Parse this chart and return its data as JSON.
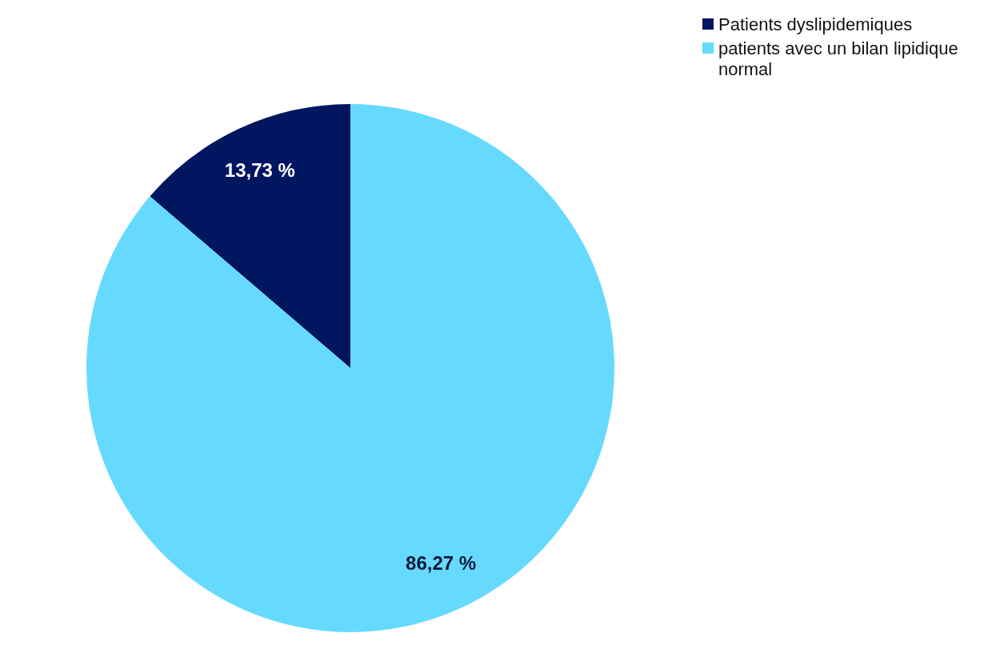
{
  "chart_data": {
    "type": "pie",
    "categories": [
      "Patients dyslipidemiques",
      "patients avec un bilan lipidique normal"
    ],
    "values": [
      13.73,
      86.27
    ],
    "colors": [
      "#001660",
      "#66d9ff"
    ],
    "value_labels": [
      "13,73 %",
      "86,27 %"
    ],
    "legend": "top right"
  }
}
